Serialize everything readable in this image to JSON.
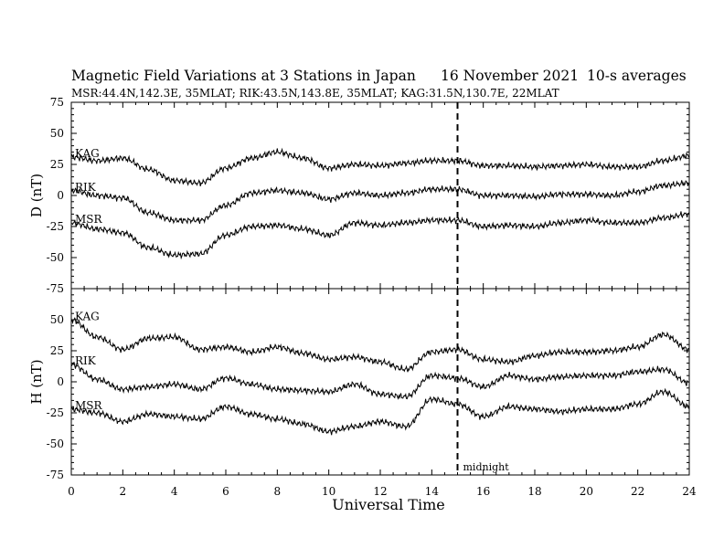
{
  "chart_data": {
    "type": "line",
    "title": "Magnetic Field Variations at 3 Stations in Japan",
    "date": "16 November 2021",
    "note": "10-s averages",
    "subtitle": "MSR:44.4N,142.3E, 35MLAT;  RIK:43.5N,143.8E, 35MLAT;  KAG:31.5N,130.7E, 22MLAT",
    "xlabel": "Universal Time",
    "xlim": [
      0,
      24
    ],
    "xticks": [
      "0",
      "2",
      "4",
      "6",
      "8",
      "10",
      "12",
      "14",
      "16",
      "18",
      "20",
      "22",
      "24"
    ],
    "marker": {
      "x": 15,
      "label": "midnight"
    },
    "panels": [
      {
        "ylabel": "D (nT)",
        "ylim": [
          -75,
          75
        ],
        "yticks": [
          "75",
          "50",
          "25",
          "0",
          "-25",
          "-50",
          "-75"
        ],
        "series": [
          {
            "name": "KAG",
            "x": [
              0,
              1,
              2,
              3,
              4,
              5,
              6,
              7,
              8,
              9,
              10,
              11,
              12,
              13,
              14,
              15,
              16,
              17,
              18,
              19,
              20,
              21,
              22,
              23,
              24
            ],
            "values": [
              31,
              28,
              30,
              21,
              12,
              10,
              22,
              30,
              35,
              30,
              22,
              25,
              24,
              26,
              28,
              28,
              24,
              24,
              23,
              24,
              25,
              23,
              23,
              28,
              32
            ]
          },
          {
            "name": "RIK",
            "x": [
              0,
              1,
              2,
              3,
              4,
              5,
              6,
              7,
              8,
              9,
              10,
              11,
              12,
              13,
              14,
              15,
              16,
              17,
              18,
              19,
              20,
              21,
              22,
              23,
              24
            ],
            "values": [
              4,
              0,
              -2,
              -14,
              -20,
              -20,
              -8,
              2,
              4,
              2,
              -3,
              2,
              0,
              2,
              5,
              5,
              0,
              0,
              -1,
              1,
              1,
              0,
              3,
              8,
              10
            ]
          },
          {
            "name": "MSR",
            "x": [
              0,
              1,
              2,
              3,
              4,
              5,
              6,
              7,
              8,
              9,
              10,
              11,
              12,
              13,
              14,
              15,
              16,
              17,
              18,
              19,
              20,
              21,
              22,
              23,
              24
            ],
            "values": [
              -22,
              -27,
              -30,
              -42,
              -48,
              -47,
              -32,
              -25,
              -24,
              -27,
              -32,
              -22,
              -24,
              -22,
              -20,
              -20,
              -25,
              -24,
              -25,
              -22,
              -20,
              -22,
              -22,
              -18,
              -15
            ]
          }
        ]
      },
      {
        "ylabel": "H (nT)",
        "ylim": [
          -75,
          75
        ],
        "yticks": [
          "50",
          "25",
          "0",
          "-25",
          "-50",
          "-75"
        ],
        "series": [
          {
            "name": "KAG",
            "x": [
              0,
              1,
              2,
              3,
              4,
              5,
              6,
              7,
              8,
              9,
              10,
              11,
              12,
              13,
              14,
              15,
              16,
              17,
              18,
              19,
              20,
              21,
              22,
              23,
              24
            ],
            "values": [
              50,
              36,
              26,
              35,
              36,
              26,
              28,
              24,
              28,
              23,
              18,
              20,
              16,
              10,
              24,
              26,
              18,
              16,
              21,
              24,
              24,
              25,
              28,
              38,
              26
            ]
          },
          {
            "name": "RIK",
            "x": [
              0,
              1,
              2,
              3,
              4,
              5,
              6,
              7,
              8,
              9,
              10,
              11,
              12,
              13,
              14,
              15,
              16,
              17,
              18,
              19,
              20,
              21,
              22,
              23,
              24
            ],
            "values": [
              14,
              2,
              -6,
              -4,
              -2,
              -6,
              3,
              -2,
              -6,
              -7,
              -8,
              -2,
              -10,
              -12,
              5,
              3,
              -4,
              5,
              2,
              4,
              5,
              5,
              8,
              10,
              -1
            ]
          },
          {
            "name": "MSR",
            "x": [
              0,
              1,
              2,
              3,
              4,
              5,
              6,
              7,
              8,
              9,
              10,
              11,
              12,
              13,
              14,
              15,
              16,
              17,
              18,
              19,
              20,
              21,
              22,
              23,
              24
            ],
            "values": [
              -22,
              -25,
              -32,
              -26,
              -28,
              -30,
              -20,
              -26,
              -30,
              -34,
              -40,
              -36,
              -32,
              -36,
              -14,
              -18,
              -28,
              -20,
              -22,
              -24,
              -22,
              -22,
              -18,
              -8,
              -20
            ]
          }
        ]
      }
    ]
  }
}
